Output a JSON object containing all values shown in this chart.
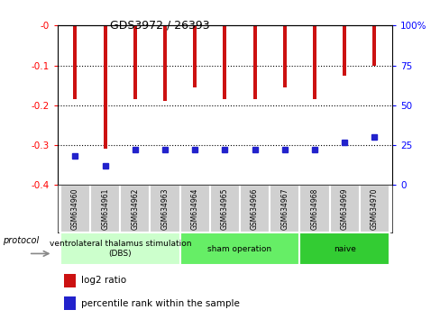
{
  "title": "GDS3972 / 26393",
  "samples": [
    "GSM634960",
    "GSM634961",
    "GSM634962",
    "GSM634963",
    "GSM634964",
    "GSM634965",
    "GSM634966",
    "GSM634967",
    "GSM634968",
    "GSM634969",
    "GSM634970"
  ],
  "log2_ratio": [
    -0.185,
    -0.31,
    -0.185,
    -0.19,
    -0.155,
    -0.185,
    -0.185,
    -0.155,
    -0.185,
    -0.125,
    -0.1
  ],
  "percentile_rank": [
    18,
    12,
    22,
    22,
    22,
    22,
    22,
    22,
    22,
    27,
    30
  ],
  "ylim_left": [
    -0.4,
    0.0
  ],
  "ylim_right": [
    0,
    100
  ],
  "yticks_left": [
    0.0,
    -0.1,
    -0.2,
    -0.3,
    -0.4
  ],
  "yticks_right": [
    100,
    75,
    50,
    25,
    0
  ],
  "groups": [
    {
      "label": "ventrolateral thalamus stimulation\n(DBS)",
      "start": 0,
      "end": 3,
      "color": "#ccffcc"
    },
    {
      "label": "sham operation",
      "start": 4,
      "end": 7,
      "color": "#66ee66"
    },
    {
      "label": "naive",
      "start": 8,
      "end": 10,
      "color": "#33cc33"
    }
  ],
  "protocol_label": "protocol",
  "bar_color": "#cc1111",
  "dot_color": "#2222cc",
  "bar_width": 0.12,
  "background_color": "#ffffff",
  "legend_items": [
    "log2 ratio",
    "percentile rank within the sample"
  ]
}
